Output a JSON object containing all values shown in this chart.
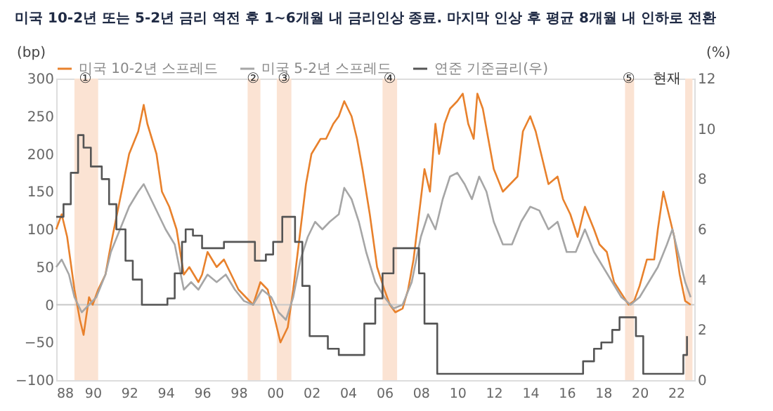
{
  "chart_data": {
    "type": "line",
    "title": "미국 10-2년 또는 5-2년 금리 역전 후 1~6개월 내 금리인상 종료. 마지막 인상 후 평균 8개월 내 인하로 전환",
    "ylabel": "(bp)",
    "y2label": "(%)",
    "xlim": [
      1988,
      2023
    ],
    "xticks": [
      {
        "value": 1988,
        "label": "88"
      },
      {
        "value": 1990,
        "label": "90"
      },
      {
        "value": 1992,
        "label": "92"
      },
      {
        "value": 1994,
        "label": "94"
      },
      {
        "value": 1996,
        "label": "96"
      },
      {
        "value": 1998,
        "label": "98"
      },
      {
        "value": 2000,
        "label": "00"
      },
      {
        "value": 2002,
        "label": "02"
      },
      {
        "value": 2004,
        "label": "04"
      },
      {
        "value": 2006,
        "label": "06"
      },
      {
        "value": 2008,
        "label": "08"
      },
      {
        "value": 2010,
        "label": "10"
      },
      {
        "value": 2012,
        "label": "12"
      },
      {
        "value": 2014,
        "label": "14"
      },
      {
        "value": 2016,
        "label": "16"
      },
      {
        "value": 2018,
        "label": "18"
      },
      {
        "value": 2020,
        "label": "20"
      },
      {
        "value": 2022,
        "label": "22"
      }
    ],
    "ylim": [
      -100,
      300
    ],
    "yticks": [
      -100,
      -50,
      0,
      50,
      100,
      150,
      200,
      250,
      300
    ],
    "y2lim": [
      0,
      12
    ],
    "y2ticks": [
      0,
      2,
      4,
      6,
      8,
      10,
      12
    ],
    "legend": "top",
    "grid": false,
    "series": [
      {
        "name": "미국 10-2년 스프레드",
        "color": "#e8812c",
        "x": [
          1988.0,
          1988.3,
          1988.6,
          1989.0,
          1989.3,
          1989.5,
          1989.8,
          1990.0,
          1990.3,
          1990.7,
          1991.0,
          1991.5,
          1992.0,
          1992.5,
          1992.8,
          1993.0,
          1993.5,
          1993.8,
          1994.2,
          1994.6,
          1995.0,
          1995.3,
          1995.8,
          1996.0,
          1996.3,
          1996.8,
          1997.2,
          1997.6,
          1998.0,
          1998.4,
          1998.8,
          1999.2,
          1999.6,
          2000.0,
          2000.3,
          2000.7,
          2001.0,
          2001.3,
          2001.7,
          2002.0,
          2002.5,
          2002.8,
          2003.2,
          2003.5,
          2003.8,
          2004.2,
          2004.5,
          2004.8,
          2005.2,
          2005.6,
          2006.0,
          2006.3,
          2006.6,
          2007.0,
          2007.3,
          2007.6,
          2008.0,
          2008.2,
          2008.5,
          2008.8,
          2009.0,
          2009.3,
          2009.6,
          2010.0,
          2010.3,
          2010.6,
          2010.9,
          2011.1,
          2011.4,
          2011.7,
          2012.0,
          2012.5,
          2012.9,
          2013.3,
          2013.6,
          2014.0,
          2014.3,
          2014.7,
          2015.0,
          2015.5,
          2015.8,
          2016.2,
          2016.6,
          2017.0,
          2017.5,
          2017.8,
          2018.2,
          2018.6,
          2019.0,
          2019.4,
          2019.7,
          2020.0,
          2020.4,
          2020.8,
          2021.0,
          2021.3,
          2021.6,
          2021.9,
          2022.2,
          2022.5,
          2022.8
        ],
        "values": [
          100,
          120,
          90,
          20,
          -20,
          -40,
          10,
          0,
          20,
          40,
          80,
          140,
          200,
          230,
          265,
          240,
          200,
          150,
          130,
          100,
          40,
          50,
          30,
          40,
          70,
          50,
          60,
          40,
          20,
          10,
          0,
          30,
          20,
          -20,
          -50,
          -30,
          20,
          80,
          160,
          200,
          220,
          220,
          240,
          250,
          270,
          250,
          220,
          180,
          120,
          50,
          20,
          0,
          -10,
          -5,
          20,
          60,
          140,
          180,
          150,
          240,
          200,
          240,
          260,
          270,
          280,
          240,
          220,
          280,
          260,
          220,
          180,
          150,
          160,
          170,
          230,
          250,
          230,
          190,
          160,
          170,
          140,
          120,
          90,
          130,
          100,
          80,
          70,
          30,
          15,
          0,
          5,
          25,
          60,
          60,
          100,
          150,
          120,
          90,
          40,
          5,
          0
        ]
      },
      {
        "name": "미국 5-2년 스프레드",
        "color": "#a6a6a6",
        "x": [
          1988.0,
          1988.3,
          1988.7,
          1989.0,
          1989.4,
          1989.8,
          1990.2,
          1990.7,
          1991.0,
          1991.5,
          1992.0,
          1992.5,
          1992.8,
          1993.2,
          1993.6,
          1994.0,
          1994.5,
          1995.0,
          1995.4,
          1995.8,
          1996.3,
          1996.8,
          1997.3,
          1997.8,
          1998.3,
          1998.8,
          1999.3,
          1999.8,
          2000.2,
          2000.6,
          2001.0,
          2001.4,
          2001.8,
          2002.2,
          2002.6,
          2003.0,
          2003.5,
          2003.8,
          2004.2,
          2004.6,
          2005.0,
          2005.5,
          2006.0,
          2006.5,
          2007.0,
          2007.5,
          2008.0,
          2008.4,
          2008.8,
          2009.2,
          2009.6,
          2010.0,
          2010.4,
          2010.8,
          2011.2,
          2011.6,
          2012.0,
          2012.5,
          2013.0,
          2013.5,
          2014.0,
          2014.5,
          2015.0,
          2015.5,
          2016.0,
          2016.5,
          2017.0,
          2017.5,
          2018.0,
          2018.5,
          2019.0,
          2019.5,
          2020.0,
          2020.5,
          2021.0,
          2021.5,
          2021.8,
          2022.2,
          2022.5,
          2022.8
        ],
        "values": [
          50,
          60,
          40,
          10,
          -10,
          0,
          10,
          40,
          70,
          100,
          130,
          150,
          160,
          140,
          120,
          100,
          80,
          20,
          30,
          20,
          40,
          30,
          40,
          20,
          5,
          0,
          20,
          10,
          -10,
          -20,
          10,
          60,
          90,
          110,
          100,
          110,
          120,
          155,
          140,
          110,
          70,
          30,
          10,
          -5,
          0,
          30,
          90,
          120,
          100,
          140,
          170,
          175,
          160,
          140,
          170,
          150,
          110,
          80,
          80,
          110,
          130,
          125,
          100,
          110,
          70,
          70,
          100,
          70,
          50,
          30,
          10,
          0,
          10,
          30,
          50,
          80,
          100,
          60,
          30,
          10
        ]
      },
      {
        "name": "연준 기준금리(우)",
        "color": "#555555",
        "type": "step",
        "axis": "y2",
        "x": [
          1988.0,
          1988.4,
          1988.8,
          1989.2,
          1989.5,
          1989.9,
          1990.5,
          1990.9,
          1991.3,
          1991.8,
          1992.2,
          1992.7,
          1993.9,
          1994.1,
          1994.5,
          1994.9,
          1995.1,
          1995.5,
          1996.0,
          1997.2,
          1998.7,
          1998.9,
          1999.5,
          1999.9,
          2000.4,
          2000.9,
          2001.1,
          2001.5,
          2001.9,
          2002.9,
          2003.5,
          2004.4,
          2004.9,
          2005.5,
          2005.9,
          2006.5,
          2007.6,
          2007.9,
          2008.2,
          2008.9,
          2015.9,
          2016.9,
          2017.5,
          2017.9,
          2018.5,
          2018.9,
          2019.5,
          2019.8,
          2020.2,
          2022.1,
          2022.4,
          2022.6
        ],
        "values": [
          6.5,
          7.0,
          8.25,
          9.75,
          9.25,
          8.5,
          8.0,
          7.0,
          6.0,
          4.75,
          4.0,
          3.0,
          3.0,
          3.25,
          4.25,
          5.5,
          6.0,
          5.75,
          5.25,
          5.5,
          5.5,
          4.75,
          5.0,
          5.5,
          6.5,
          6.5,
          5.5,
          3.75,
          1.75,
          1.25,
          1.0,
          1.0,
          2.25,
          3.25,
          4.25,
          5.25,
          5.25,
          4.25,
          2.25,
          0.25,
          0.25,
          0.75,
          1.25,
          1.5,
          2.0,
          2.5,
          2.5,
          1.75,
          0.25,
          0.25,
          1.0,
          1.75
        ]
      }
    ],
    "ref_lines": [
      {
        "axis": "y",
        "value": 0,
        "color": "#c8c8c8"
      }
    ],
    "bands": [
      {
        "axis": "x",
        "from": 1989.0,
        "to": 1990.3,
        "color": "#fbe3d3"
      },
      {
        "axis": "x",
        "from": 1998.5,
        "to": 1999.2,
        "color": "#fbe3d3"
      },
      {
        "axis": "x",
        "from": 2000.1,
        "to": 2000.9,
        "color": "#fbe3d3"
      },
      {
        "axis": "x",
        "from": 2005.9,
        "to": 2006.7,
        "color": "#fbe3d3"
      },
      {
        "axis": "x",
        "from": 2019.2,
        "to": 2019.7,
        "color": "#fbe3d3"
      },
      {
        "axis": "x",
        "from": 2022.5,
        "to": 2022.9,
        "color": "#fbe3d3"
      }
    ],
    "annotations": [
      {
        "text": "①",
        "x": 1989.6,
        "y": 300
      },
      {
        "text": "②",
        "x": 1998.8,
        "y": 300
      },
      {
        "text": "③",
        "x": 2000.5,
        "y": 300
      },
      {
        "text": "④",
        "x": 2006.3,
        "y": 300
      },
      {
        "text": "⑤",
        "x": 2019.4,
        "y": 300
      },
      {
        "text": "현재",
        "x": 2022.5,
        "y": 300
      }
    ]
  }
}
